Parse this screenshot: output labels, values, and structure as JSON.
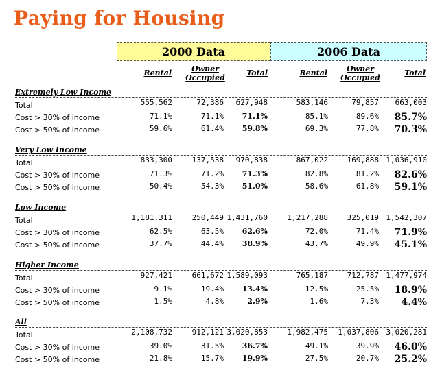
{
  "title": "Paying for Housing",
  "headers": {
    "y2000": "2000 Data",
    "y2006": "2006 Data"
  },
  "columns": {
    "rental": "Rental",
    "owner_line1": "Owner",
    "owner_line2": "Occupied",
    "total": "Total"
  },
  "row_labels": {
    "total": "Total",
    "cost30": "Cost > 30% of income",
    "cost50": "Cost > 50% of income"
  },
  "sections": [
    {
      "title": "Extremely Low Income",
      "rows": [
        [
          "555,562",
          "72,386",
          "627,948",
          "583,146",
          "79,857",
          "663,003"
        ],
        [
          "71.1%",
          "71.1%",
          "71.1%",
          "85.1%",
          "89.6%",
          "85.7%"
        ],
        [
          "59.6%",
          "61.4%",
          "59.8%",
          "69.3%",
          "77.8%",
          "70.3%"
        ]
      ]
    },
    {
      "title": "Very Low Income",
      "rows": [
        [
          "833,300",
          "137,538",
          "970,838",
          "867,022",
          "169,888",
          "1,036,910"
        ],
        [
          "71.3%",
          "71.2%",
          "71.3%",
          "82.8%",
          "81.2%",
          "82.6%"
        ],
        [
          "50.4%",
          "54.3%",
          "51.0%",
          "58.6%",
          "61.8%",
          "59.1%"
        ]
      ]
    },
    {
      "title": "Low Income",
      "rows": [
        [
          "1,181,311",
          "250,449",
          "1,431,760",
          "1,217,288",
          "325,019",
          "1,542,307"
        ],
        [
          "62.5%",
          "63.5%",
          "62.6%",
          "72.0%",
          "71.4%",
          "71.9%"
        ],
        [
          "37.7%",
          "44.4%",
          "38.9%",
          "43.7%",
          "49.9%",
          "45.1%"
        ]
      ]
    },
    {
      "title": "Higher Income",
      "rows": [
        [
          "927,421",
          "661,672",
          "1,589,093",
          "765,187",
          "712,787",
          "1,477,974"
        ],
        [
          "9.1%",
          "19.4%",
          "13.4%",
          "12.5%",
          "25.5%",
          "18.9%"
        ],
        [
          "1.5%",
          "4.8%",
          "2.9%",
          "1.6%",
          "7.3%",
          "4.4%"
        ]
      ]
    },
    {
      "title": "All",
      "rows": [
        [
          "2,108,732",
          "912,121",
          "3,020,853",
          "1,982,475",
          "1,037,806",
          "3,020,281"
        ],
        [
          "39.0%",
          "31.5%",
          "36.7%",
          "49.1%",
          "39.9%",
          "46.0%"
        ],
        [
          "21.8%",
          "15.7%",
          "19.9%",
          "27.5%",
          "20.7%",
          "25.2%"
        ]
      ]
    }
  ]
}
